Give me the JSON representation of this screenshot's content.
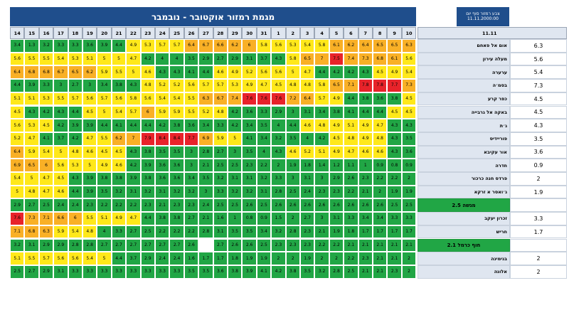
{
  "title": "מגמת רמזור אוקטובר - נובמבר",
  "last_update": {
    "label": "צבע רמזור סוף יום",
    "value": "11.11.2000:00"
  },
  "latest_header": "11.11",
  "colors": {
    "green": "#21a645",
    "yellow": "#ffe81a",
    "orange": "#f9b026",
    "red": "#e8232a",
    "header_blue": "#1f4e8c"
  },
  "chart_data": {
    "type": "heatmap",
    "dates": [
      "14",
      "15",
      "16",
      "17",
      "18",
      "19",
      "20",
      "21",
      "22",
      "23",
      "24",
      "25",
      "26",
      "27",
      "28",
      "29",
      "30",
      "31",
      "1",
      "2",
      "3",
      "4",
      "5",
      "6",
      "7",
      "8",
      "9",
      "10"
    ],
    "rows": [
      {
        "name": "אום אל פאחם",
        "latest": "6.3",
        "values": [
          "3.4",
          "1.3",
          "3.2",
          "3.3",
          "3.3",
          "3.6",
          "3.9",
          "4.4",
          "4.9",
          "5.3",
          "5.7",
          "5.7",
          "6.4",
          "6.7",
          "6.6",
          "6.2",
          "6",
          "5.8",
          "5.6",
          "5.3",
          "5.4",
          "5.8",
          "6.1",
          "6.2",
          "6.4",
          "6.5",
          "6.5",
          "6.3"
        ]
      },
      {
        "name": "מעלה עירון",
        "latest": "5.6",
        "values": [
          "5.6",
          "5.5",
          "5.5",
          "5.4",
          "5.3",
          "5.1",
          "5",
          "5",
          "4.7",
          "4.2",
          "4",
          "4",
          "3.5",
          "2.9",
          "2.7",
          "2.9",
          "3.1",
          "3.7",
          "4.3",
          "5.8",
          "6.5",
          "7",
          "7.5",
          "7.4",
          "7.3",
          "6.8",
          "6.1",
          "5.6"
        ]
      },
      {
        "name": "ערערה",
        "latest": "5.4",
        "values": [
          "6.4",
          "6.8",
          "6.8",
          "6.7",
          "6.5",
          "6.2",
          "5.9",
          "5.5",
          "5",
          "4.6",
          "4.3",
          "4.3",
          "4.1",
          "4.4",
          "4.6",
          "4.9",
          "5.2",
          "5.6",
          "5.6",
          "5",
          "4.7",
          "4.4",
          "4.2",
          "4.2",
          "4.3",
          "4.5",
          "4.9",
          "5.4"
        ]
      },
      {
        "name": "בסמ׳ה",
        "latest": "7.3",
        "values": [
          "4.4",
          "3.9",
          "3.3",
          "3",
          "2.7",
          "3",
          "3.4",
          "3.8",
          "4.3",
          "4.8",
          "5.2",
          "5.2",
          "5.6",
          "5.7",
          "5.7",
          "5.3",
          "4.9",
          "4.7",
          "4.5",
          "4.8",
          "4.8",
          "5.8",
          "6.5",
          "7.1",
          "7.8",
          "7.8",
          "7.7",
          "7.3"
        ]
      },
      {
        "name": "כפר קרע",
        "latest": "4.5",
        "values": [
          "5.1",
          "5.1",
          "5.3",
          "5.5",
          "5.7",
          "5.6",
          "5.7",
          "5.6",
          "5.8",
          "5.6",
          "5.4",
          "5.4",
          "5.5",
          "6.3",
          "6.7",
          "7.4",
          "7.6",
          "7.6",
          "7.6",
          "7.2",
          "6.4",
          "5.7",
          "4.9",
          "4.4",
          "3.8",
          "3.6",
          "3.8",
          "4.5"
        ]
      },
      {
        "name": "באקה אל גרבייה",
        "latest": "4.5",
        "values": [
          "4.5",
          "4.3",
          "4.2",
          "4.3",
          "4.4",
          "4.5",
          "5",
          "5.4",
          "5.7",
          "6",
          "5.9",
          "5.9",
          "5.5",
          "5.2",
          "4.8",
          "4.2",
          "3.6",
          "3.3",
          "2.9",
          "3",
          "3.1",
          "3.4",
          "3.8",
          "4.1",
          "4.4",
          "4.4",
          "4.5",
          "4.5"
        ]
      },
      {
        "name": "ג׳ת",
        "latest": "4.3",
        "values": [
          "5.6",
          "5.3",
          "4.5",
          "4.2",
          "3.9",
          "3.9",
          "4.4",
          "4.1",
          "4.4",
          "4.4",
          "4.2",
          "3.8",
          "3.6",
          "3.4",
          "3.3",
          "4.2",
          "3.4",
          "3.5",
          "4",
          "4.4",
          "4.6",
          "4.8",
          "4.9",
          "5.1",
          "4.9",
          "4.7",
          "4.3",
          "4.3"
        ]
      },
      {
        "name": "פוריידיס",
        "latest": "3.5",
        "values": [
          "5.2",
          "4.7",
          "4.1",
          "3.7",
          "4.2",
          "4.7",
          "5.5",
          "6.2",
          "7",
          "7.9",
          "8.4",
          "8.4",
          "7.7",
          "6.9",
          "5.9",
          "5",
          "4.1",
          "3.4",
          "3.2",
          "3.5",
          "4",
          "4.2",
          "4.5",
          "4.8",
          "4.9",
          "4.8",
          "4.3",
          "3.5"
        ]
      },
      {
        "name": "אור עקיבא",
        "latest": "3.6",
        "values": [
          "6.4",
          "5.9",
          "5.4",
          "5",
          "4.8",
          "4.6",
          "4.5",
          "4.5",
          "4.3",
          "3.8",
          "3.5",
          "3.5",
          "3",
          "2.8",
          "2.7",
          "3",
          "3.5",
          "4",
          "4.3",
          "4.6",
          "5.2",
          "5.1",
          "4.9",
          "4.7",
          "4.6",
          "4.6",
          "4.3",
          "3.6"
        ]
      },
      {
        "name": "חדרה",
        "latest": "0.9",
        "values": [
          "6.9",
          "6.5",
          "6",
          "5.6",
          "5.3",
          "5",
          "4.9",
          "4.6",
          "4.2",
          "3.9",
          "3.6",
          "3.6",
          "3",
          "2.1",
          "2.5",
          "2.5",
          "2.3",
          "2.2",
          "2",
          "1.9",
          "1.8",
          "1.4",
          "1.2",
          "1.1",
          "1",
          "0.9",
          "0.8",
          "0.9"
        ]
      },
      {
        "name": "פרדס חנה כרכור",
        "latest": "2",
        "values": [
          "5.4",
          "5",
          "4.7",
          "4.5",
          "4.3",
          "3.9",
          "3.8",
          "3.8",
          "3.9",
          "3.8",
          "3.6",
          "3.6",
          "3.4",
          "3.5",
          "3.2",
          "3.1",
          "3.1",
          "3.2",
          "3.3",
          "3",
          "3.1",
          "3",
          "2.9",
          "2.6",
          "2.3",
          "2.2",
          "2.2",
          "2"
        ]
      },
      {
        "name": "ג׳ואסר א זרקא",
        "latest": "1.9",
        "values": [
          "5",
          "4.8",
          "4.7",
          "4.6",
          "4.4",
          "3.9",
          "3.5",
          "3.2",
          "3.1",
          "3.2",
          "3.1",
          "3.2",
          "3.2",
          "3",
          "3.3",
          "3.2",
          "3.2",
          "3.1",
          "2.8",
          "2.5",
          "2.4",
          "2.3",
          "2.3",
          "2.2",
          "2.1",
          "2",
          "1.9",
          "1.9"
        ]
      },
      {
        "name": "מגשה 2.5",
        "group": true,
        "latest": "",
        "values": [
          "2.9",
          "2.7",
          "2.5",
          "2.4",
          "2.4",
          "2.3",
          "2.2",
          "2.2",
          "2.2",
          "2.3",
          "2.1",
          "2.3",
          "2.3",
          "2.4",
          "2.5",
          "2.5",
          "2.6",
          "2.5",
          "2.6",
          "2.6",
          "2.6",
          "2.6",
          "2.6",
          "2.6",
          "2.6",
          "2.6",
          "2.5",
          "2.5"
        ]
      },
      {
        "name": "זכרון יעקב",
        "latest": "3.3",
        "values": [
          "7.6",
          "7.3",
          "7.1",
          "6.6",
          "6",
          "5.5",
          "5.1",
          "4.9",
          "4.7",
          "4.4",
          "3.8",
          "3.8",
          "2.7",
          "2.1",
          "1.6",
          "1",
          "0.8",
          "0.9",
          "1.5",
          "2",
          "2.7",
          "3",
          "3.1",
          "3.3",
          "3.4",
          "3.4",
          "3.3",
          "3.3"
        ]
      },
      {
        "name": "חריש",
        "latest": "1.7",
        "values": [
          "7.1",
          "6.8",
          "6.3",
          "5.9",
          "5.4",
          "4.8",
          "4",
          "3.3",
          "2.7",
          "2.5",
          "2.2",
          "2.2",
          "2.2",
          "2.8",
          "3.1",
          "3.5",
          "3.5",
          "3.4",
          "3.2",
          "2.8",
          "2.3",
          "2.1",
          "1.9",
          "1.8",
          "1.7",
          "1.7",
          "1.7",
          "1.7"
        ]
      },
      {
        "name": "חוף כרמל 2.1",
        "group": true,
        "latest": "",
        "values": [
          "3.2",
          "3.1",
          "2.9",
          "2.9",
          "2.8",
          "2.8",
          "2.7",
          "2.7",
          "2.7",
          "2.7",
          "2.7",
          "2.7",
          "2.6",
          "",
          "2.7",
          "2.6",
          "2.6",
          "2.5",
          "2.3",
          "2.3",
          "2.3",
          "2.2",
          "2.2",
          "2.1",
          "2.1",
          "2.1",
          "2.1",
          "2.1"
        ]
      },
      {
        "name": "בנימינה",
        "latest": "2",
        "values": [
          "5.1",
          "5.5",
          "5.7",
          "5.6",
          "5.6",
          "5.4",
          "5",
          "4.4",
          "3.7",
          "2.9",
          "2.4",
          "2.4",
          "1.6",
          "1.7",
          "1.7",
          "1.8",
          "1.9",
          "1.9",
          "2",
          "2",
          "1.9",
          "2",
          "2",
          "2.2",
          "2.3",
          "2.1",
          "2.1",
          "2"
        ]
      },
      {
        "name": "אלונה",
        "latest": "2",
        "values": [
          "2.5",
          "2.7",
          "2.9",
          "3.1",
          "3.3",
          "3.3",
          "3.3",
          "3.3",
          "3.3",
          "3.3",
          "3.3",
          "3.3",
          "3.5",
          "3.5",
          "3.6",
          "3.8",
          "3.9",
          "4.1",
          "4.2",
          "3.8",
          "3.5",
          "3.2",
          "2.8",
          "2.5",
          "2.1",
          "2.1",
          "2.3",
          "2"
        ]
      }
    ]
  }
}
